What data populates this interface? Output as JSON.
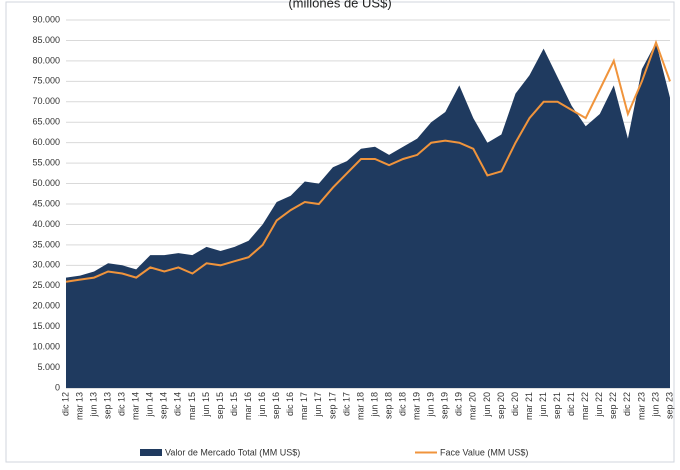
{
  "chart_data": {
    "type": "area_line",
    "title": "(millones de US$)",
    "categories": [
      "dic 12",
      "mar 13",
      "jun 13",
      "sep 13",
      "dic 13",
      "mar 14",
      "jun 14",
      "sep 14",
      "dic 14",
      "mar 15",
      "jun 15",
      "sep 15",
      "dic 15",
      "mar 16",
      "jun 16",
      "sep 16",
      "dic 16",
      "mar 17",
      "jun 17",
      "sep 17",
      "dic 17",
      "mar 18",
      "jun 18",
      "sep 18",
      "dic 18",
      "mar 19",
      "jun 19",
      "sep 19",
      "dic 19",
      "mar 20",
      "jun 20",
      "sep 20",
      "dic 20",
      "mar 21",
      "jun 21",
      "sep 21",
      "dic 21",
      "mar 22",
      "jun 22",
      "sep 22",
      "dic 22",
      "mar 23",
      "jun 23",
      "sep 23"
    ],
    "series": [
      {
        "name": "Valor de Mercado Total (MM US$)",
        "color": "#1f3a5f",
        "values": [
          27000,
          27500,
          28500,
          30500,
          30000,
          29000,
          32500,
          32500,
          33000,
          32500,
          34500,
          33500,
          34500,
          36000,
          40000,
          45500,
          47000,
          50500,
          50000,
          54000,
          55500,
          58500,
          59000,
          57000,
          59000,
          61000,
          65000,
          67500,
          74000,
          66000,
          60000,
          62000,
          72000,
          76500,
          83000,
          76000,
          69000,
          64000,
          67000,
          74000,
          61000,
          78000,
          84500,
          71000
        ]
      },
      {
        "name": "Face Value (MM US$)",
        "color": "#f0943c",
        "values": [
          26000,
          26500,
          27000,
          28500,
          28000,
          27000,
          29500,
          28500,
          29500,
          28000,
          30500,
          30000,
          31000,
          32000,
          35000,
          41000,
          43500,
          45500,
          45000,
          49000,
          52500,
          56000,
          56000,
          54500,
          56000,
          57000,
          60000,
          60500,
          60000,
          58500,
          52000,
          53000,
          60000,
          66000,
          70000,
          70000,
          68000,
          66000,
          73000,
          80000,
          67000,
          75000,
          84500,
          75000
        ]
      }
    ],
    "ylim": [
      0,
      90000
    ],
    "yticks": [
      0,
      {
        "value": 5000,
        "label": "5.000"
      },
      {
        "value": 10000,
        "label": "10.000"
      },
      {
        "value": 15000,
        "label": "15.000"
      },
      {
        "value": 20000,
        "label": "20.000"
      },
      {
        "value": 25000,
        "label": "25.000"
      },
      {
        "value": 30000,
        "label": "30.000"
      },
      {
        "value": 35000,
        "label": "35.000"
      },
      {
        "value": 40000,
        "label": "40.000"
      },
      {
        "value": 45000,
        "label": "45.000"
      },
      {
        "value": 50000,
        "label": "50.000"
      },
      {
        "value": 55000,
        "label": "55.000"
      },
      {
        "value": 60000,
        "label": "60.000"
      },
      {
        "value": 65000,
        "label": "65.000"
      },
      {
        "value": 70000,
        "label": "70.000"
      },
      {
        "value": 75000,
        "label": "75.000"
      },
      {
        "value": 80000,
        "label": "80.000"
      },
      {
        "value": 85000,
        "label": "85.000"
      },
      {
        "value": 90000,
        "label": "90.000"
      }
    ],
    "grid": true
  }
}
